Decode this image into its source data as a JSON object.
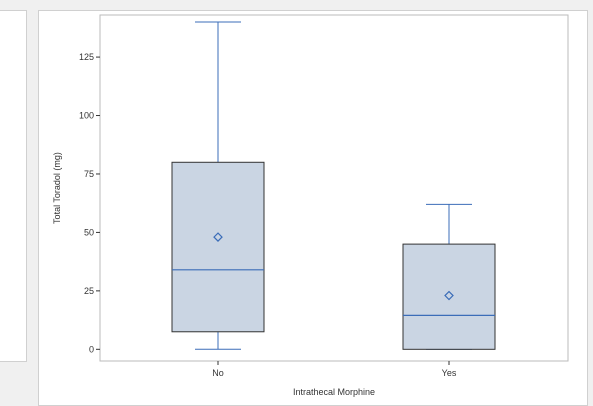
{
  "chart_data": {
    "type": "box",
    "xlabel": "Intrathecal Morphine",
    "ylabel": "Total Toradol (mg)",
    "categories": [
      "No",
      "Yes"
    ],
    "yticks": [
      0,
      25,
      50,
      75,
      100,
      125
    ],
    "ylim": [
      -5,
      143
    ],
    "grid": false,
    "boxes": [
      {
        "category": "No",
        "min": 0,
        "q1": 7.5,
        "median": 34,
        "q3": 80,
        "max": 140,
        "mean": 48
      },
      {
        "category": "Yes",
        "min": 0,
        "q1": 0,
        "median": 14.5,
        "q3": 45,
        "max": 62,
        "mean": 23
      }
    ],
    "colors": {
      "box_fill": "#cad5e3",
      "box_edge": "#333333",
      "whisker": "#3b6db8",
      "median": "#3b6db8",
      "mean_marker": "#3b6db8"
    }
  }
}
